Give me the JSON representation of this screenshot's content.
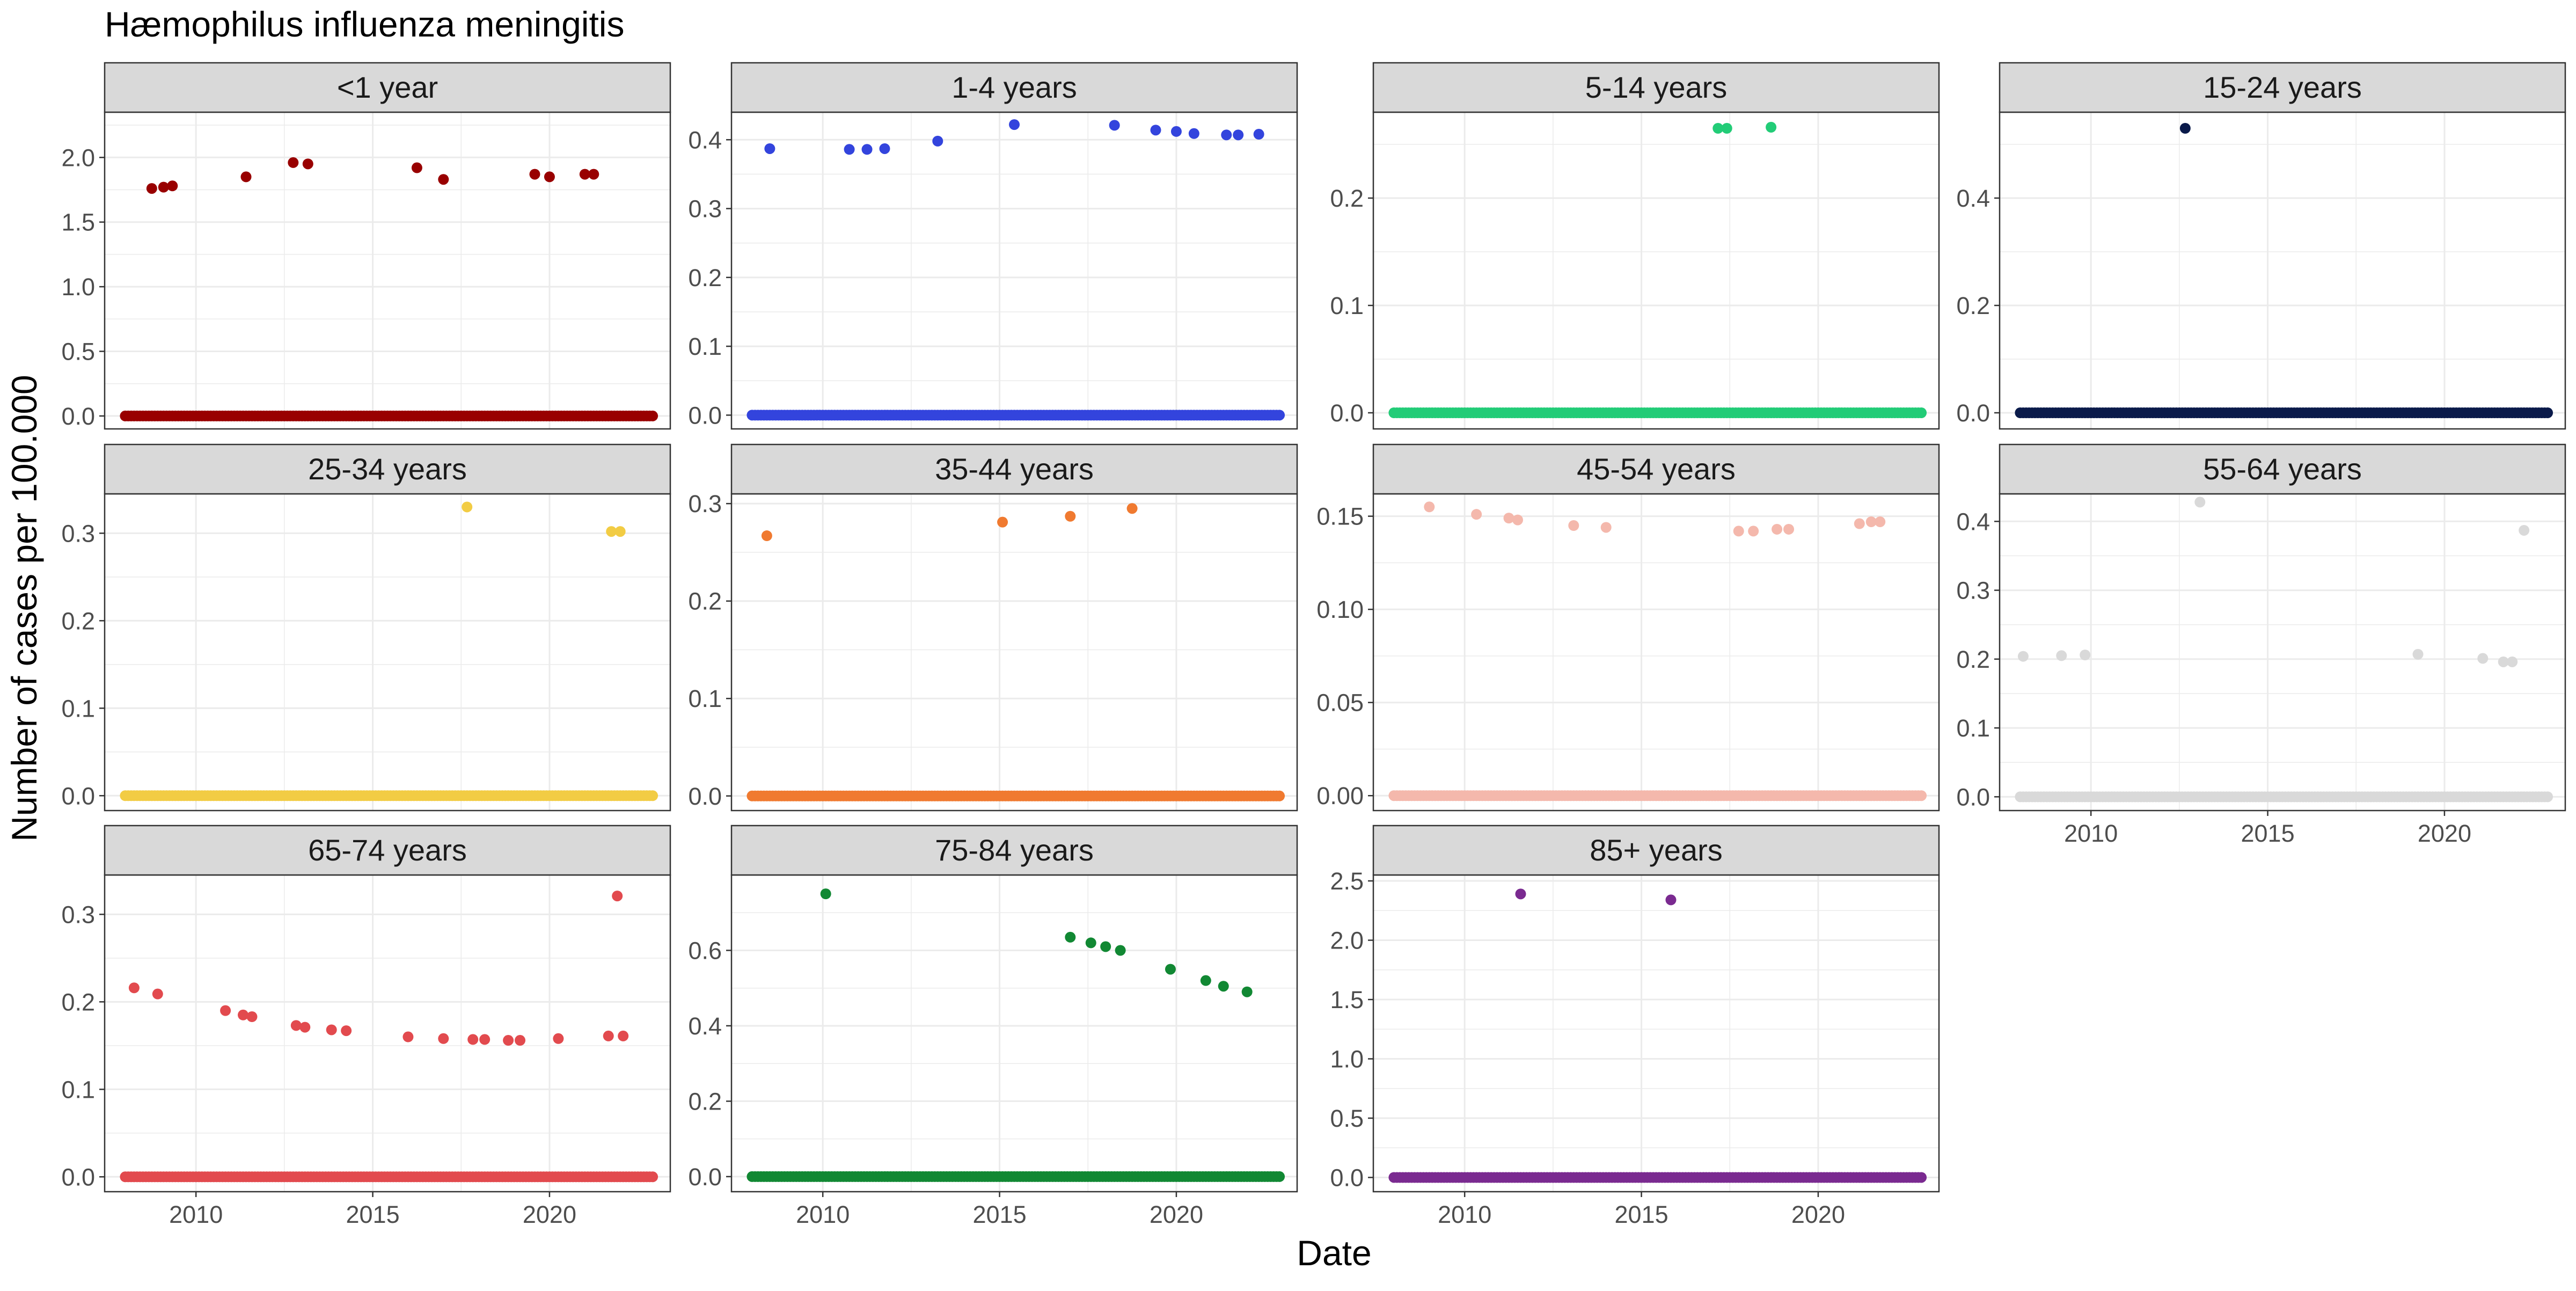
{
  "title": "Hæmophilus influenza meningitis",
  "xlabel": "Date",
  "ylabel": "Number of cases per 100.000",
  "chart_data": {
    "type": "scatter",
    "facet": "age group",
    "x_axis": {
      "type": "date",
      "range": [
        "2007-06",
        "2023-06"
      ],
      "ticks": [
        "2010",
        "2015",
        "2020"
      ]
    },
    "baseline_zero_points_from": "2008-01",
    "baseline_zero_points_to": "2022-12",
    "grid": true,
    "panels": [
      {
        "label": "<1 year",
        "color": "#990000",
        "ylim": [
          -0.1,
          2.35
        ],
        "yticks": [
          "0.0",
          "0.5",
          "1.0",
          "1.5",
          "2.0"
        ],
        "points": [
          [
            "2008-10",
            1.76
          ],
          [
            "2009-02",
            1.77
          ],
          [
            "2009-05",
            1.78
          ],
          [
            "2011-06",
            1.85
          ],
          [
            "2012-10",
            1.96
          ],
          [
            "2013-03",
            1.95
          ],
          [
            "2016-04",
            1.92
          ],
          [
            "2017-01",
            1.83
          ],
          [
            "2019-08",
            1.87
          ],
          [
            "2020-01",
            1.85
          ],
          [
            "2021-01",
            1.87
          ],
          [
            "2021-04",
            1.87
          ]
        ]
      },
      {
        "label": "1-4 years",
        "color": "#3344DD",
        "ylim": [
          -0.02,
          0.44
        ],
        "yticks": [
          "0.0",
          "0.1",
          "0.2",
          "0.3",
          "0.4"
        ],
        "points": [
          [
            "2008-07",
            0.387
          ],
          [
            "2010-10",
            0.386
          ],
          [
            "2011-04",
            0.386
          ],
          [
            "2011-10",
            0.387
          ],
          [
            "2013-04",
            0.398
          ],
          [
            "2015-06",
            0.422
          ],
          [
            "2018-04",
            0.421
          ],
          [
            "2019-06",
            0.414
          ],
          [
            "2020-01",
            0.412
          ],
          [
            "2020-07",
            0.409
          ],
          [
            "2021-06",
            0.407
          ],
          [
            "2021-10",
            0.407
          ],
          [
            "2022-05",
            0.408
          ]
        ]
      },
      {
        "label": "5-14 years",
        "color": "#22CC77",
        "ylim": [
          -0.015,
          0.28
        ],
        "yticks": [
          "0.0",
          "0.1",
          "0.2"
        ],
        "points": [
          [
            "2017-03",
            0.265
          ],
          [
            "2017-06",
            0.265
          ],
          [
            "2018-09",
            0.266
          ]
        ]
      },
      {
        "label": "15-24 years",
        "color": "#0A1A4A",
        "ylim": [
          -0.03,
          0.56
        ],
        "yticks": [
          "0.0",
          "0.2",
          "0.4"
        ],
        "points": [
          [
            "2012-09",
            0.53
          ]
        ]
      },
      {
        "label": "25-34 years",
        "color": "#F2CC44",
        "ylim": [
          -0.017,
          0.345
        ],
        "yticks": [
          "0.0",
          "0.1",
          "0.2",
          "0.3"
        ],
        "points": [
          [
            "2017-09",
            0.33
          ],
          [
            "2021-10",
            0.302
          ],
          [
            "2022-01",
            0.302
          ]
        ]
      },
      {
        "label": "35-44 years",
        "color": "#F07A30",
        "ylim": [
          -0.015,
          0.31
        ],
        "yticks": [
          "0.0",
          "0.1",
          "0.2",
          "0.3"
        ],
        "points": [
          [
            "2008-06",
            0.267
          ],
          [
            "2015-02",
            0.281
          ],
          [
            "2017-01",
            0.287
          ],
          [
            "2018-10",
            0.295
          ]
        ]
      },
      {
        "label": "45-54 years",
        "color": "#F4B8AC",
        "ylim": [
          -0.008,
          0.162
        ],
        "yticks": [
          "0.00",
          "0.05",
          "0.10",
          "0.15"
        ],
        "points": [
          [
            "2009-01",
            0.155
          ],
          [
            "2010-05",
            0.151
          ],
          [
            "2011-04",
            0.149
          ],
          [
            "2011-07",
            0.148
          ],
          [
            "2013-02",
            0.145
          ],
          [
            "2014-01",
            0.144
          ],
          [
            "2017-10",
            0.142
          ],
          [
            "2018-03",
            0.142
          ],
          [
            "2018-11",
            0.143
          ],
          [
            "2019-03",
            0.143
          ],
          [
            "2021-03",
            0.146
          ],
          [
            "2021-07",
            0.147
          ],
          [
            "2021-10",
            0.147
          ]
        ]
      },
      {
        "label": "55-64 years",
        "color": "#D9D9D9",
        "ylim": [
          -0.02,
          0.44
        ],
        "yticks": [
          "0.0",
          "0.1",
          "0.2",
          "0.3",
          "0.4"
        ],
        "points": [
          [
            "2008-02",
            0.204
          ],
          [
            "2009-03",
            0.205
          ],
          [
            "2009-11",
            0.206
          ],
          [
            "2013-02",
            0.428
          ],
          [
            "2019-04",
            0.207
          ],
          [
            "2021-02",
            0.201
          ],
          [
            "2021-09",
            0.196
          ],
          [
            "2021-12",
            0.196
          ],
          [
            "2022-04",
            0.387
          ]
        ]
      },
      {
        "label": "65-74 years",
        "color": "#E24A4E",
        "ylim": [
          -0.017,
          0.345
        ],
        "yticks": [
          "0.0",
          "0.1",
          "0.2",
          "0.3"
        ],
        "points": [
          [
            "2008-04",
            0.216
          ],
          [
            "2008-12",
            0.209
          ],
          [
            "2010-11",
            0.19
          ],
          [
            "2011-05",
            0.185
          ],
          [
            "2011-08",
            0.183
          ],
          [
            "2012-11",
            0.173
          ],
          [
            "2013-02",
            0.171
          ],
          [
            "2013-11",
            0.168
          ],
          [
            "2014-04",
            0.167
          ],
          [
            "2016-01",
            0.16
          ],
          [
            "2017-01",
            0.158
          ],
          [
            "2017-11",
            0.157
          ],
          [
            "2018-03",
            0.157
          ],
          [
            "2018-11",
            0.156
          ],
          [
            "2019-03",
            0.156
          ],
          [
            "2020-04",
            0.158
          ],
          [
            "2021-09",
            0.161
          ],
          [
            "2021-12",
            0.321
          ],
          [
            "2022-02",
            0.161
          ]
        ]
      },
      {
        "label": "75-84 years",
        "color": "#118833",
        "ylim": [
          -0.04,
          0.8
        ],
        "yticks": [
          "0.0",
          "0.2",
          "0.4",
          "0.6"
        ],
        "points": [
          [
            "2010-02",
            0.75
          ],
          [
            "2017-01",
            0.635
          ],
          [
            "2017-08",
            0.62
          ],
          [
            "2018-01",
            0.61
          ],
          [
            "2018-06",
            0.6
          ],
          [
            "2019-11",
            0.55
          ],
          [
            "2020-11",
            0.52
          ],
          [
            "2021-05",
            0.505
          ],
          [
            "2022-01",
            0.49
          ]
        ]
      },
      {
        "label": "85+ years",
        "color": "#7A2A90",
        "ylim": [
          -0.12,
          2.55
        ],
        "yticks": [
          "0.0",
          "0.5",
          "1.0",
          "1.5",
          "2.0",
          "2.5"
        ],
        "points": [
          [
            "2011-08",
            2.39
          ],
          [
            "2015-11",
            2.34
          ]
        ]
      }
    ]
  }
}
